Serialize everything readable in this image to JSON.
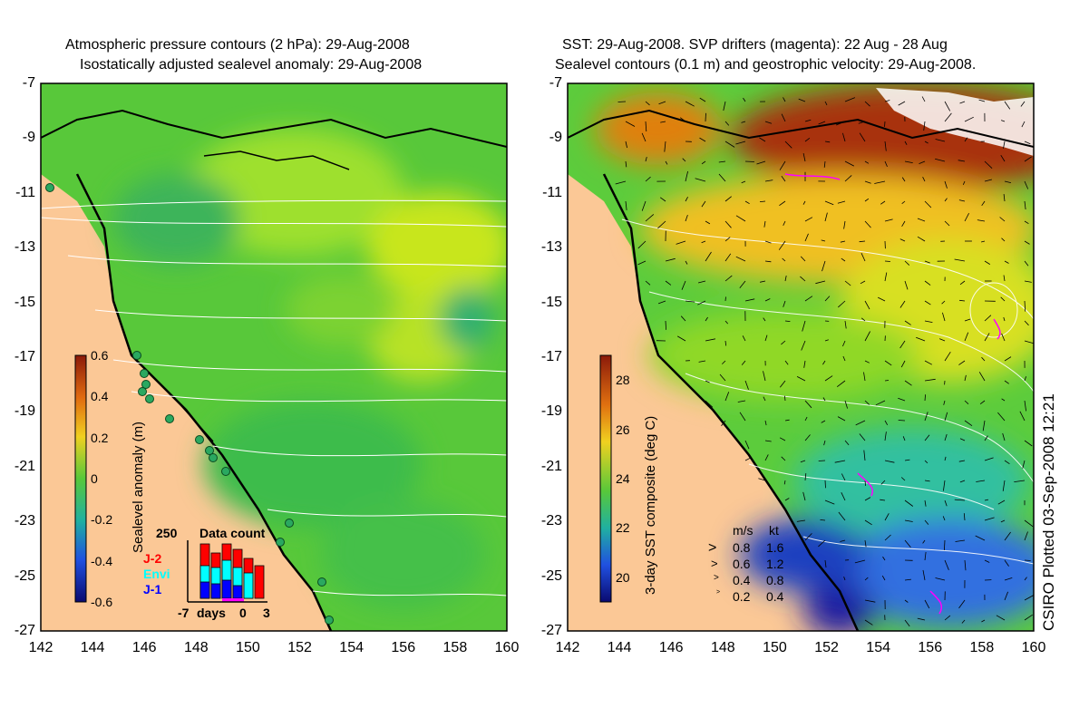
{
  "left_panel": {
    "title_line1": "Atmospheric pressure contours (2 hPa): 29-Aug-2008",
    "title_line2": "Isostatically adjusted sealevel anomaly: 29-Aug-2008",
    "colorbar": {
      "label": "Sealevel anomaly (m)",
      "ticks": [
        "0.6",
        "0.4",
        "0.2",
        "0",
        "-0.2",
        "-0.4",
        "-0.6"
      ],
      "range": [
        -0.6,
        0.6
      ]
    },
    "data_count": {
      "title": "Data count",
      "max_label": "250",
      "legend": [
        {
          "name": "J-2",
          "color": "#ff0000"
        },
        {
          "name": "Envi",
          "color": "#00ffff"
        },
        {
          "name": "J-1",
          "color": "#0000ff"
        }
      ],
      "x_labels": [
        "-7",
        "days",
        "0",
        "3"
      ]
    }
  },
  "right_panel": {
    "title_line1": "SST: 29-Aug-2008. SVP drifters (magenta): 22 Aug - 28 Aug",
    "title_line2": "Sealevel contours (0.1 m) and geostrophic velocity: 29-Aug-2008.",
    "colorbar": {
      "label": "3-day SST composite (deg C)",
      "ticks": [
        "28",
        "26",
        "24",
        "22",
        "20"
      ],
      "range": [
        19,
        29
      ]
    },
    "velocity_legend": {
      "header_ms": "m/s",
      "header_kt": "kt",
      "rows": [
        {
          "ms": "0.8",
          "kt": "1.6"
        },
        {
          "ms": "0.6",
          "kt": "1.2"
        },
        {
          "ms": "0.4",
          "kt": "0.8"
        },
        {
          "ms": "0.2",
          "kt": "0.4"
        }
      ]
    }
  },
  "axes": {
    "lat_ticks": [
      "-7",
      "-9",
      "-11",
      "-13",
      "-15",
      "-17",
      "-19",
      "-21",
      "-23",
      "-25",
      "-27"
    ],
    "lon_ticks": [
      "142",
      "144",
      "146",
      "148",
      "150",
      "152",
      "154",
      "156",
      "158",
      "160"
    ],
    "lat_range": [
      -27,
      -7
    ],
    "lon_range": [
      142,
      160
    ]
  },
  "credit": "CSIRO Plotted 03-Sep-2008 12:21",
  "colors": {
    "land": "#fbc896",
    "sea_green": "#5ccf3c",
    "contour": "#ffffff",
    "drifters": "#ff00ff"
  }
}
